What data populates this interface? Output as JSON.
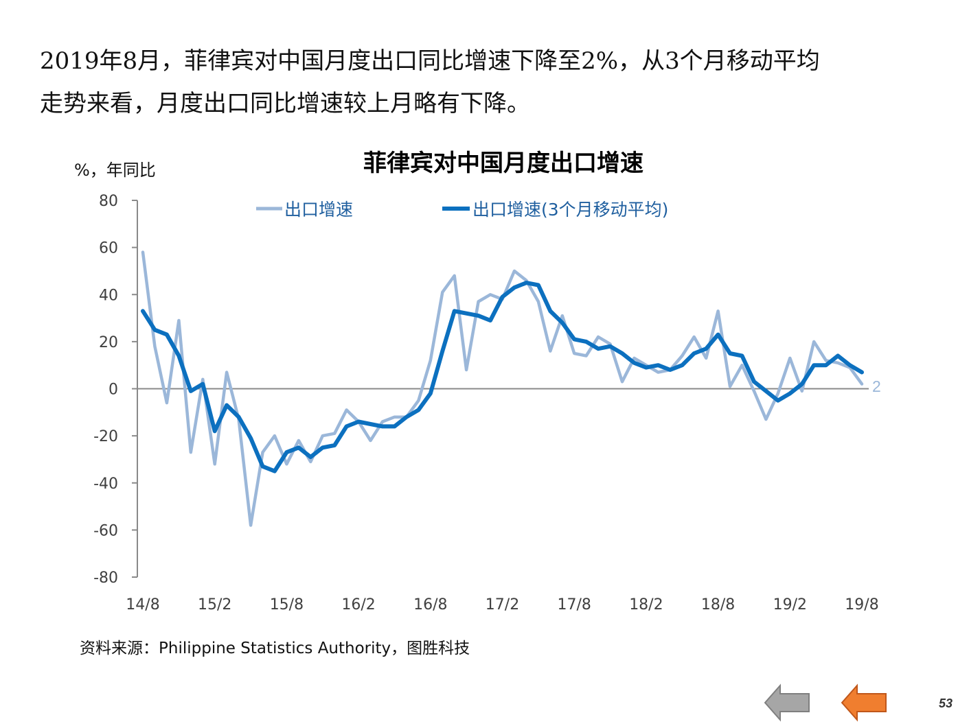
{
  "headline": {
    "line1": "2019年8月，菲律宾对中国月度出口同比增速下降至2%，从3个月移动平均",
    "line2": "走势来看，月度出口同比增速较上月略有下降。"
  },
  "source": "资料来源：Philippine Statistics Authority，图胜科技",
  "page_number": "53",
  "nav": {
    "back_icon": "left-arrow-icon-gray",
    "forward_icon": "left-arrow-icon-orange"
  },
  "colors": {
    "series_raw": "#9bb7d9",
    "series_ma": "#0c70bf",
    "axis": "#898989",
    "end_label": "#9bb7d9",
    "nav_back": "#a6a6a6",
    "nav_forward": "#f07e2f"
  },
  "chart_data": {
    "type": "line",
    "title": "菲律宾对中国月度出口增速",
    "ylabel": "%，年同比",
    "ylim": [
      -80,
      80
    ],
    "yticks": [
      80,
      60,
      40,
      20,
      0,
      -20,
      -40,
      -60,
      -80
    ],
    "x_tick_labels": [
      "14/8",
      "15/2",
      "15/8",
      "16/2",
      "16/8",
      "17/2",
      "17/8",
      "18/2",
      "18/8",
      "19/2",
      "19/8"
    ],
    "x_tick_every": 6,
    "legend_position": "top",
    "end_label": "2",
    "series": [
      {
        "name": "出口增速",
        "values": [
          58,
          18,
          -6,
          29,
          -27,
          4,
          -32,
          7,
          -13,
          -58,
          -27,
          -20,
          -32,
          -22,
          -31,
          -20,
          -19,
          -9,
          -14,
          -22,
          -14,
          -12,
          -12,
          -5,
          12,
          41,
          48,
          8,
          37,
          40,
          38,
          50,
          46,
          37,
          16,
          31,
          15,
          14,
          22,
          19,
          3,
          13,
          10,
          7,
          8,
          14,
          22,
          13,
          33,
          1,
          10,
          -1,
          -13,
          -2,
          13,
          -1,
          20,
          12,
          11,
          9,
          2
        ]
      },
      {
        "name": "出口增速(3个月移动平均)",
        "values": [
          33,
          25,
          23,
          14,
          -1,
          2,
          -18,
          -7,
          -12,
          -21,
          -33,
          -35,
          -27,
          -25,
          -29,
          -25,
          -24,
          -16,
          -14,
          -15,
          -16,
          -16,
          -12,
          -9,
          -2,
          16,
          33,
          32,
          31,
          29,
          39,
          43,
          45,
          44,
          33,
          28,
          21,
          20,
          17,
          18,
          15,
          11,
          9,
          10,
          8,
          10,
          15,
          17,
          23,
          15,
          14,
          3,
          -1,
          -5,
          -2,
          2,
          10,
          10,
          14,
          10,
          7
        ]
      }
    ]
  }
}
